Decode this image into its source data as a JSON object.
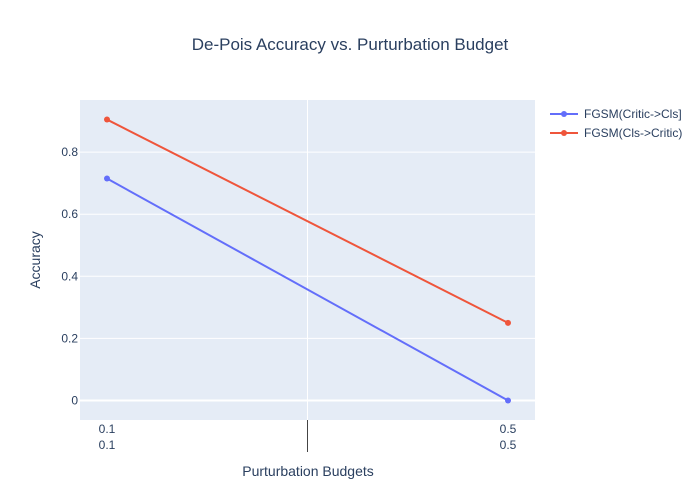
{
  "chart_data": {
    "type": "line",
    "title": "De-Pois Accuracy vs. Purturbation Budget",
    "xlabel": "Purturbation Budgets",
    "ylabel": "Accuracy",
    "x": [
      0.1,
      0.5
    ],
    "x_tick_labels_row1": [
      "0.1",
      "0.5"
    ],
    "x_tick_labels_row2": [
      "0.1",
      "0.5"
    ],
    "y_ticks": [
      0,
      0.2,
      0.4,
      0.6,
      0.8
    ],
    "y_tick_labels": [
      "0",
      "0.2",
      "0.4",
      "0.6",
      "0.8"
    ],
    "ylim": [
      -0.063,
      0.968
    ],
    "grid": true,
    "legend_position": "top-right",
    "series": [
      {
        "name": "FGSM(Critic->Cls]",
        "values": [
          0.715,
          0.0
        ],
        "color": "#636efa"
      },
      {
        "name": "FGSM(Cls->Critic)",
        "values": [
          0.905,
          0.25
        ],
        "color": "#ef553b"
      }
    ]
  },
  "colors": {
    "plot_background": "#e5ecf6",
    "grid": "#ffffff",
    "text": "#2a3f5f"
  }
}
